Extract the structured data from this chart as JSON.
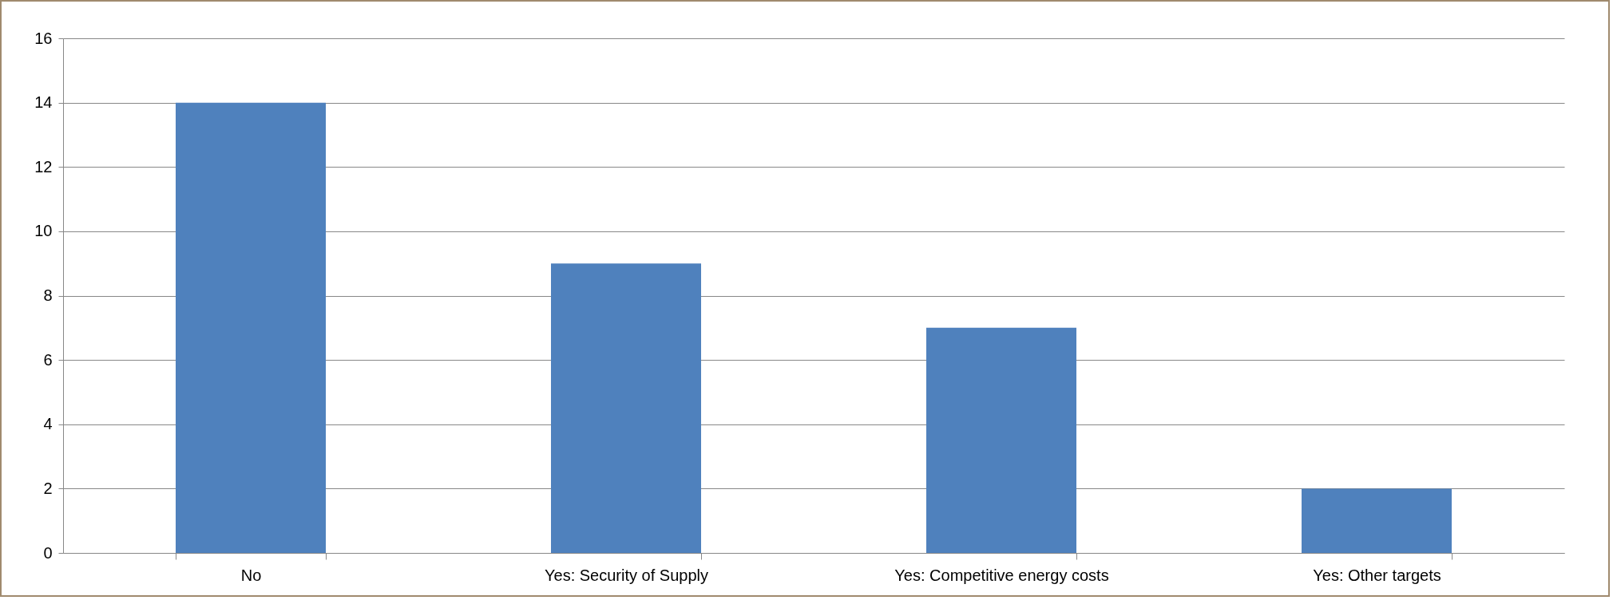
{
  "chart_data": {
    "type": "bar",
    "categories": [
      "No",
      "Yes: Security of Supply",
      "Yes: Competitive energy costs",
      "Yes: Other targets"
    ],
    "values": [
      14,
      9,
      7,
      2
    ],
    "color": "#4f81bd",
    "ylim": [
      0,
      16
    ],
    "yticks": [
      0,
      2,
      4,
      6,
      8,
      10,
      12,
      14,
      16
    ],
    "grid": "y"
  }
}
